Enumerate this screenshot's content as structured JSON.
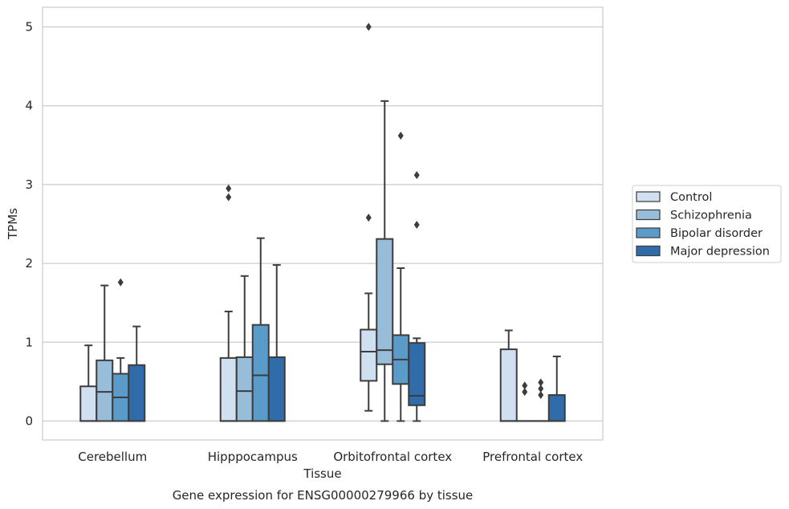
{
  "chart_data": {
    "type": "box",
    "title": "",
    "caption": "Gene expression for ENSG00000279966 by tissue",
    "xlabel": "Tissue",
    "ylabel": "TPMs",
    "ylim": [
      -0.24,
      5.25
    ],
    "yticks": [
      0,
      1,
      2,
      3,
      4,
      5
    ],
    "grid": true,
    "legend_position": "right",
    "categories": [
      "Cerebellum",
      "Hipppocampus",
      "Orbitofrontal cortex",
      "Prefrontal cortex"
    ],
    "series": [
      {
        "name": "Control",
        "color": "#d0e0f0",
        "boxes": [
          {
            "whislo": 0,
            "q1": 0,
            "med": 0,
            "q3": 0.44,
            "whishi": 0.96,
            "fliers": []
          },
          {
            "whislo": 0,
            "q1": 0,
            "med": 0,
            "q3": 0.8,
            "whishi": 1.39,
            "fliers": [
              2.84,
              2.95
            ]
          },
          {
            "whislo": 0.13,
            "q1": 0.51,
            "med": 0.88,
            "q3": 1.16,
            "whishi": 1.62,
            "fliers": [
              2.58,
              5.0
            ]
          },
          {
            "whislo": 0,
            "q1": 0,
            "med": 0,
            "q3": 0.91,
            "whishi": 1.15,
            "fliers": []
          }
        ]
      },
      {
        "name": "Schizophrenia",
        "color": "#97bdd9",
        "boxes": [
          {
            "whislo": 0,
            "q1": 0,
            "med": 0.37,
            "q3": 0.77,
            "whishi": 1.72,
            "fliers": []
          },
          {
            "whislo": 0,
            "q1": 0,
            "med": 0.38,
            "q3": 0.81,
            "whishi": 1.84,
            "fliers": []
          },
          {
            "whislo": 0,
            "q1": 0.72,
            "med": 0.9,
            "q3": 2.31,
            "whishi": 4.06,
            "fliers": []
          },
          {
            "whislo": 0,
            "q1": 0,
            "med": 0,
            "q3": 0,
            "whishi": 0,
            "fliers": [
              0.37,
              0.45
            ]
          }
        ]
      },
      {
        "name": "Bipolar disorder",
        "color": "#5a9bc9",
        "boxes": [
          {
            "whislo": 0,
            "q1": 0,
            "med": 0.3,
            "q3": 0.6,
            "whishi": 0.8,
            "fliers": [
              1.76
            ]
          },
          {
            "whislo": 0,
            "q1": 0,
            "med": 0.58,
            "q3": 1.22,
            "whishi": 2.32,
            "fliers": []
          },
          {
            "whislo": 0,
            "q1": 0.47,
            "med": 0.78,
            "q3": 1.09,
            "whishi": 1.94,
            "fliers": [
              3.62
            ]
          },
          {
            "whislo": 0,
            "q1": 0,
            "med": 0,
            "q3": 0,
            "whishi": 0,
            "fliers": [
              0.33,
              0.41,
              0.49
            ]
          }
        ]
      },
      {
        "name": "Major depression",
        "color": "#2f6ca9",
        "boxes": [
          {
            "whislo": 0,
            "q1": 0,
            "med": 0,
            "q3": 0.71,
            "whishi": 1.2,
            "fliers": []
          },
          {
            "whislo": 0,
            "q1": 0,
            "med": 0,
            "q3": 0.81,
            "whishi": 1.98,
            "fliers": []
          },
          {
            "whislo": 0,
            "q1": 0.2,
            "med": 0.32,
            "q3": 0.99,
            "whishi": 1.05,
            "fliers": [
              2.49,
              3.12
            ]
          },
          {
            "whislo": 0,
            "q1": 0,
            "med": 0,
            "q3": 0.33,
            "whishi": 0.82,
            "fliers": []
          }
        ]
      }
    ]
  }
}
